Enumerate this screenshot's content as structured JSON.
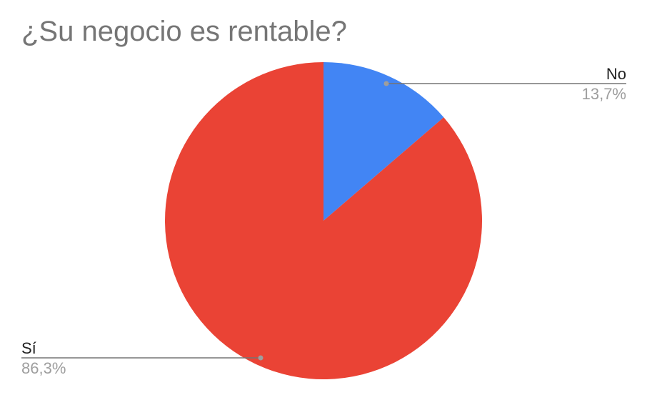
{
  "chart_data": {
    "type": "pie",
    "title": "¿Su negocio es rentable?",
    "slices": [
      {
        "label": "No",
        "value": 13.7,
        "display": "13,7%",
        "color": "#4285F4"
      },
      {
        "label": "Sí",
        "value": 86.3,
        "display": "86,3%",
        "color": "#EA4335"
      }
    ],
    "legend": "none",
    "label_placement": "outside with leader lines"
  }
}
